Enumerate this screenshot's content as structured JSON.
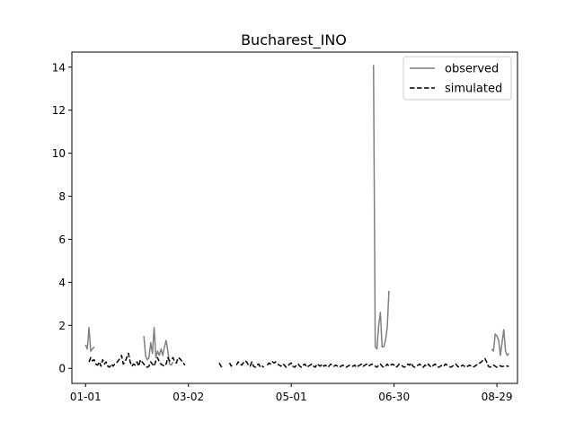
{
  "chart_data": {
    "type": "line",
    "title": "Bucharest_INO",
    "xlabel": "",
    "ylabel": "",
    "x_tick_labels": [
      "01-01",
      "03-02",
      "05-01",
      "06-30",
      "08-29"
    ],
    "x_tick_days": [
      0,
      60,
      120,
      180,
      240
    ],
    "xlim": [
      -8,
      252
    ],
    "ylim": [
      -0.7,
      14.7
    ],
    "y_ticks": [
      0,
      2,
      4,
      6,
      8,
      10,
      12,
      14
    ],
    "grid": false,
    "legend_position": "top-right",
    "series": [
      {
        "name": "observed",
        "color": "#808080",
        "style": "solid",
        "points": [
          [
            0,
            1.1
          ],
          [
            1,
            0.9
          ],
          [
            2,
            1.9
          ],
          [
            3,
            0.8
          ],
          [
            4,
            0.9
          ],
          [
            5,
            1.0
          ],
          [
            34,
            1.5
          ],
          [
            35,
            0.6
          ],
          [
            36,
            0.4
          ],
          [
            37,
            0.5
          ],
          [
            38,
            1.2
          ],
          [
            39,
            0.7
          ],
          [
            40,
            1.9
          ],
          [
            41,
            0.5
          ],
          [
            42,
            0.8
          ],
          [
            43,
            0.6
          ],
          [
            44,
            0.9
          ],
          [
            45,
            0.6
          ],
          [
            46,
            1.0
          ],
          [
            47,
            1.3
          ],
          [
            48,
            0.8
          ],
          [
            49,
            0.2
          ],
          [
            50,
            0.15
          ],
          [
            51,
            0.3
          ],
          [
            168,
            14.1
          ],
          [
            169,
            1.0
          ],
          [
            170,
            0.9
          ],
          [
            171,
            2.0
          ],
          [
            172,
            2.6
          ],
          [
            173,
            1.0
          ],
          [
            174,
            1.0
          ],
          [
            175,
            1.3
          ],
          [
            176,
            1.9
          ],
          [
            177,
            3.6
          ],
          [
            237,
            0.9
          ],
          [
            238,
            0.8
          ],
          [
            239,
            1.6
          ],
          [
            240,
            1.5
          ],
          [
            241,
            1.3
          ],
          [
            242,
            0.6
          ],
          [
            243,
            1.2
          ],
          [
            244,
            1.8
          ],
          [
            245,
            0.8
          ],
          [
            246,
            0.6
          ],
          [
            247,
            0.7
          ]
        ]
      },
      {
        "name": "simulated",
        "color": "#000000",
        "style": "dashed",
        "points": [
          [
            0,
            0.2
          ],
          [
            2,
            0.3
          ],
          [
            3,
            0.5
          ],
          [
            4,
            0.35
          ],
          [
            5,
            0.4
          ],
          [
            6,
            0.2
          ],
          [
            7,
            0.15
          ],
          [
            8,
            0.3
          ],
          [
            9,
            0.1
          ],
          [
            10,
            0.4
          ],
          [
            11,
            0.2
          ],
          [
            12,
            0.3
          ],
          [
            13,
            0.1
          ],
          [
            14,
            0.05
          ],
          [
            15,
            0.2
          ],
          [
            16,
            0.1
          ],
          [
            17,
            0.2
          ],
          [
            18,
            0.25
          ],
          [
            19,
            0.35
          ],
          [
            20,
            0.45
          ],
          [
            21,
            0.6
          ],
          [
            22,
            0.2
          ],
          [
            23,
            0.3
          ],
          [
            24,
            0.5
          ],
          [
            25,
            0.7
          ],
          [
            26,
            0.3
          ],
          [
            27,
            0.1
          ],
          [
            28,
            0.2
          ],
          [
            29,
            0.15
          ],
          [
            30,
            0.3
          ],
          [
            31,
            0.1
          ],
          [
            32,
            0.4
          ],
          [
            33,
            0.3
          ],
          [
            34,
            0.2
          ],
          [
            35,
            0.1
          ],
          [
            36,
            0.05
          ],
          [
            37,
            0.1
          ],
          [
            38,
            0.3
          ],
          [
            39,
            0.2
          ],
          [
            40,
            0.1
          ],
          [
            41,
            0.35
          ],
          [
            42,
            0.5
          ],
          [
            43,
            0.3
          ],
          [
            44,
            0.2
          ],
          [
            45,
            0.15
          ],
          [
            46,
            0.1
          ],
          [
            47,
            0.2
          ],
          [
            48,
            0.5
          ],
          [
            49,
            0.35
          ],
          [
            50,
            0.4
          ],
          [
            51,
            0.5
          ],
          [
            52,
            0.3
          ],
          [
            53,
            0.25
          ],
          [
            54,
            0.5
          ],
          [
            55,
            0.45
          ],
          [
            56,
            0.35
          ],
          [
            57,
            0.25
          ],
          [
            58,
            0.15
          ],
          [
            60,
            0.1
          ],
          [
            62,
            0.08
          ],
          [
            64,
            0.1
          ],
          [
            66,
            0.06
          ],
          [
            68,
            0.05
          ],
          [
            70,
            0.08
          ],
          [
            72,
            0.05
          ],
          [
            74,
            0.06
          ],
          [
            76,
            0.15
          ],
          [
            78,
            0.25
          ],
          [
            79,
            0.1
          ],
          [
            80,
            0.05
          ],
          [
            82,
            0.2
          ],
          [
            84,
            0.25
          ],
          [
            85,
            0.1
          ],
          [
            86,
            0.2
          ],
          [
            88,
            0.15
          ],
          [
            89,
            0.3
          ],
          [
            90,
            0.2
          ],
          [
            91,
            0.15
          ],
          [
            92,
            0.25
          ],
          [
            93,
            0.35
          ],
          [
            94,
            0.3
          ],
          [
            95,
            0.15
          ],
          [
            96,
            0.1
          ],
          [
            97,
            0.3
          ],
          [
            98,
            0.1
          ],
          [
            99,
            0.05
          ],
          [
            100,
            0.15
          ],
          [
            101,
            0.2
          ],
          [
            102,
            0.05
          ],
          [
            103,
            0.1
          ],
          [
            104,
            0.05
          ],
          [
            106,
            0.15
          ],
          [
            107,
            0.25
          ],
          [
            108,
            0.2
          ],
          [
            109,
            0.3
          ],
          [
            110,
            0.25
          ],
          [
            111,
            0.3
          ],
          [
            112,
            0.2
          ],
          [
            113,
            0.15
          ],
          [
            114,
            0.1
          ],
          [
            115,
            0.2
          ],
          [
            116,
            0.15
          ],
          [
            117,
            0.05
          ],
          [
            118,
            0.1
          ],
          [
            119,
            0.2
          ],
          [
            120,
            0.25
          ],
          [
            121,
            0.1
          ],
          [
            122,
            0.05
          ],
          [
            123,
            0.15
          ],
          [
            124,
            0.2
          ],
          [
            125,
            0.1
          ],
          [
            126,
            0.05
          ],
          [
            127,
            0.15
          ],
          [
            128,
            0.2
          ],
          [
            129,
            0.05
          ],
          [
            130,
            0.1
          ],
          [
            131,
            0.15
          ],
          [
            132,
            0.2
          ],
          [
            133,
            0.1
          ],
          [
            134,
            0.05
          ],
          [
            135,
            0.2
          ],
          [
            136,
            0.15
          ],
          [
            137,
            0.1
          ],
          [
            138,
            0.2
          ],
          [
            139,
            0.1
          ],
          [
            140,
            0.15
          ],
          [
            141,
            0.05
          ],
          [
            142,
            0.1
          ],
          [
            143,
            0.2
          ],
          [
            144,
            0.15
          ],
          [
            145,
            0.1
          ],
          [
            146,
            0.15
          ],
          [
            147,
            0.1
          ],
          [
            148,
            0.05
          ],
          [
            149,
            0.1
          ],
          [
            150,
            0.15
          ],
          [
            151,
            0.1
          ],
          [
            152,
            0.05
          ],
          [
            153,
            0.1
          ],
          [
            154,
            0.15
          ],
          [
            155,
            0.1
          ],
          [
            156,
            0.1
          ],
          [
            157,
            0.15
          ],
          [
            158,
            0.05
          ],
          [
            159,
            0.1
          ],
          [
            160,
            0.15
          ],
          [
            161,
            0.2
          ],
          [
            162,
            0.1
          ],
          [
            163,
            0.15
          ],
          [
            164,
            0.2
          ],
          [
            165,
            0.1
          ],
          [
            166,
            0.15
          ],
          [
            167,
            0.2
          ],
          [
            168,
            0.15
          ],
          [
            169,
            0.1
          ],
          [
            170,
            0.05
          ],
          [
            171,
            0.15
          ],
          [
            172,
            0.2
          ],
          [
            173,
            0.1
          ],
          [
            174,
            0.05
          ],
          [
            175,
            0.1
          ],
          [
            176,
            0.2
          ],
          [
            177,
            0.1
          ],
          [
            178,
            0.15
          ],
          [
            179,
            0.2
          ],
          [
            180,
            0.15
          ],
          [
            181,
            0.05
          ],
          [
            182,
            0.1
          ],
          [
            183,
            0.2
          ],
          [
            184,
            0.15
          ],
          [
            185,
            0.1
          ],
          [
            186,
            0.05
          ],
          [
            187,
            0.1
          ],
          [
            188,
            0.2
          ],
          [
            189,
            0.15
          ],
          [
            190,
            0.25
          ],
          [
            191,
            0.1
          ],
          [
            192,
            0.05
          ],
          [
            193,
            0.1
          ],
          [
            194,
            0.15
          ],
          [
            195,
            0.2
          ],
          [
            196,
            0.1
          ],
          [
            197,
            0.05
          ],
          [
            198,
            0.15
          ],
          [
            199,
            0.1
          ],
          [
            200,
            0.2
          ],
          [
            201,
            0.1
          ],
          [
            202,
            0.05
          ],
          [
            203,
            0.15
          ],
          [
            204,
            0.2
          ],
          [
            205,
            0.1
          ],
          [
            206,
            0.05
          ],
          [
            207,
            0.1
          ],
          [
            208,
            0.15
          ],
          [
            209,
            0.1
          ],
          [
            210,
            0.2
          ],
          [
            211,
            0.15
          ],
          [
            212,
            0.1
          ],
          [
            213,
            0.05
          ],
          [
            214,
            0.1
          ],
          [
            215,
            0.15
          ],
          [
            216,
            0.2
          ],
          [
            217,
            0.1
          ],
          [
            218,
            0.05
          ],
          [
            219,
            0.1
          ],
          [
            220,
            0.15
          ],
          [
            221,
            0.1
          ],
          [
            222,
            0.05
          ],
          [
            223,
            0.1
          ],
          [
            224,
            0.15
          ],
          [
            225,
            0.1
          ],
          [
            226,
            0.05
          ],
          [
            227,
            0.1
          ],
          [
            228,
            0.15
          ],
          [
            229,
            0.2
          ],
          [
            230,
            0.25
          ],
          [
            231,
            0.3
          ],
          [
            232,
            0.4
          ],
          [
            233,
            0.45
          ],
          [
            234,
            0.3
          ],
          [
            235,
            0.1
          ],
          [
            236,
            0.05
          ],
          [
            237,
            0.1
          ],
          [
            238,
            0.15
          ],
          [
            239,
            0.1
          ],
          [
            240,
            0.05
          ],
          [
            241,
            0.1
          ],
          [
            242,
            0.12
          ],
          [
            243,
            0.08
          ],
          [
            244,
            0.1
          ],
          [
            245,
            0.12
          ],
          [
            246,
            0.1
          ],
          [
            247,
            0.1
          ]
        ]
      }
    ]
  }
}
